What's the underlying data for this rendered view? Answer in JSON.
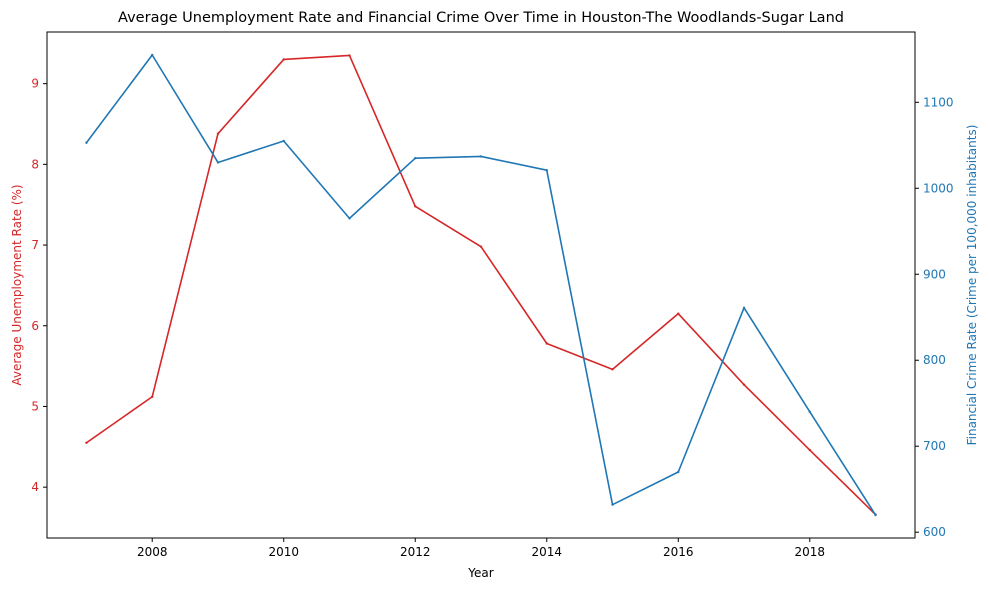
{
  "chart_data": {
    "type": "line",
    "title": "Average Unemployment Rate and Financial Crime Over Time in Houston-The Woodlands-Sugar Land",
    "xlabel": "Year",
    "x": [
      2007,
      2008,
      2009,
      2010,
      2011,
      2012,
      2013,
      2014,
      2015,
      2016,
      2017,
      2018,
      2019
    ],
    "xlim": [
      2006.4,
      2019.6
    ],
    "xticks": [
      2008,
      2010,
      2012,
      2014,
      2016,
      2018
    ],
    "series": [
      {
        "name": "Average Unemployment Rate (%)",
        "axis": "left",
        "color": "#d62728",
        "values": [
          4.55,
          5.12,
          8.38,
          9.3,
          9.35,
          7.48,
          6.98,
          5.78,
          5.46,
          6.15,
          5.27,
          4.46,
          3.66
        ]
      },
      {
        "name": "Financial Crime Rate (Crime per 100,000 inhabitants)",
        "axis": "right",
        "color": "#1f77b4",
        "values": [
          1053,
          1155,
          1030,
          1055,
          965,
          1035,
          1037,
          1021,
          632,
          670,
          861,
          740,
          620
        ]
      }
    ],
    "y_left": {
      "label": "Average Unemployment Rate (%)",
      "color": "#d62728",
      "lim": [
        3.37,
        9.64
      ],
      "ticks": [
        4,
        5,
        6,
        7,
        8,
        9
      ]
    },
    "y_right": {
      "label": "Financial Crime Rate (Crime per 100,000 inhabitants)",
      "color": "#1f77b4",
      "lim": [
        593.25,
        1181.75
      ],
      "ticks": [
        600,
        700,
        800,
        900,
        1000,
        1100
      ]
    }
  }
}
